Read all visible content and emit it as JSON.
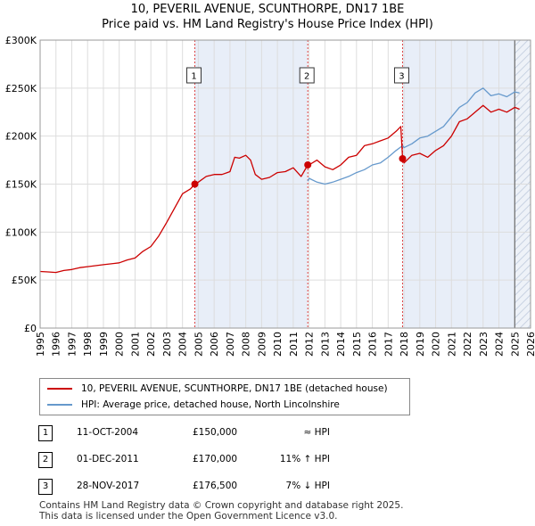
{
  "title_line1": "10, PEVERIL AVENUE, SCUNTHORPE, DN17 1BE",
  "title_line2": "Price paid vs. HM Land Registry's House Price Index (HPI)",
  "chart_data": {
    "type": "line",
    "xlim": [
      1995,
      2026
    ],
    "ylim": [
      0,
      300000
    ],
    "y_ticks": [
      0,
      50000,
      100000,
      150000,
      200000,
      250000,
      300000
    ],
    "y_tick_labels": [
      "£0",
      "£50K",
      "£100K",
      "£150K",
      "£200K",
      "£250K",
      "£300K"
    ],
    "x_ticks": [
      1995,
      1996,
      1997,
      1998,
      1999,
      2000,
      2001,
      2002,
      2003,
      2004,
      2005,
      2006,
      2007,
      2008,
      2009,
      2010,
      2011,
      2012,
      2013,
      2014,
      2015,
      2016,
      2017,
      2018,
      2019,
      2020,
      2021,
      2022,
      2023,
      2024,
      2025,
      2026
    ],
    "x_tick_labels": [
      "1995",
      "1996",
      "1997",
      "1998",
      "1999",
      "2000",
      "2001",
      "2002",
      "2003",
      "2004",
      "2005",
      "2006",
      "2007",
      "2008",
      "2009",
      "2010",
      "2011",
      "2012",
      "2013",
      "2014",
      "2015",
      "2016",
      "2017",
      "2018",
      "2019",
      "2020",
      "2021",
      "2022",
      "2023",
      "2024",
      "2025",
      "2026"
    ],
    "grid": true,
    "forecast_from": 2025.0,
    "series": [
      {
        "name": "10, PEVERIL AVENUE, SCUNTHORPE, DN17 1BE (detached house)",
        "color": "#cc0000",
        "x": [
          1995.0,
          1995.5,
          1996.0,
          1996.5,
          1997.0,
          1997.5,
          1998.0,
          1998.5,
          1999.0,
          1999.5,
          2000.0,
          2000.5,
          2001.0,
          2001.5,
          2002.0,
          2002.5,
          2003.0,
          2003.5,
          2004.0,
          2004.5,
          2004.78,
          2005.0,
          2005.5,
          2006.0,
          2006.5,
          2007.0,
          2007.3,
          2007.6,
          2008.0,
          2008.3,
          2008.6,
          2009.0,
          2009.5,
          2010.0,
          2010.5,
          2011.0,
          2011.5,
          2011.92,
          2012.0,
          2012.5,
          2013.0,
          2013.5,
          2014.0,
          2014.5,
          2015.0,
          2015.5,
          2016.0,
          2016.5,
          2017.0,
          2017.5,
          2017.8,
          2017.91,
          2018.0,
          2018.5,
          2019.0,
          2019.5,
          2020.0,
          2020.5,
          2021.0,
          2021.5,
          2022.0,
          2022.5,
          2023.0,
          2023.5,
          2024.0,
          2024.5,
          2025.0,
          2025.3
        ],
        "values": [
          59000,
          58500,
          58000,
          60000,
          61000,
          63000,
          64000,
          65000,
          66000,
          67000,
          68000,
          71000,
          73000,
          80000,
          85000,
          96000,
          110000,
          125000,
          140000,
          145000,
          150000,
          152000,
          158000,
          160000,
          160000,
          163000,
          178000,
          177000,
          180000,
          175000,
          160000,
          155000,
          157000,
          162000,
          163000,
          167000,
          158000,
          170000,
          170000,
          175000,
          168000,
          165000,
          170000,
          178000,
          180000,
          190000,
          192000,
          195000,
          198000,
          205000,
          210000,
          176500,
          172000,
          180000,
          182000,
          178000,
          185000,
          190000,
          200000,
          215000,
          218000,
          225000,
          232000,
          225000,
          228000,
          225000,
          230000,
          228000
        ]
      },
      {
        "name": "HPI: Average price, detached house, North Lincolnshire",
        "color": "#6699cc",
        "x": [
          2011.92,
          2012.0,
          2012.5,
          2013.0,
          2013.5,
          2014.0,
          2014.5,
          2015.0,
          2015.5,
          2016.0,
          2016.5,
          2017.0,
          2017.5,
          2017.91,
          2018.0,
          2018.5,
          2019.0,
          2019.5,
          2020.0,
          2020.5,
          2021.0,
          2021.5,
          2022.0,
          2022.5,
          2023.0,
          2023.5,
          2024.0,
          2024.5,
          2025.0,
          2025.3
        ],
        "values": [
          153000,
          156000,
          152000,
          150000,
          152000,
          155000,
          158000,
          162000,
          165000,
          170000,
          172000,
          178000,
          185000,
          190000,
          188000,
          192000,
          198000,
          200000,
          205000,
          210000,
          220000,
          230000,
          235000,
          245000,
          250000,
          242000,
          244000,
          241000,
          246000,
          245000
        ]
      }
    ],
    "sales": [
      {
        "label": "1",
        "x": 2004.78,
        "value": 150000
      },
      {
        "label": "2",
        "x": 2011.92,
        "value": 170000
      },
      {
        "label": "3",
        "x": 2017.91,
        "value": 176500
      }
    ]
  },
  "legend": {
    "items": [
      {
        "label": "10, PEVERIL AVENUE, SCUNTHORPE, DN17 1BE (detached house)",
        "color": "#cc0000"
      },
      {
        "label": "HPI: Average price, detached house, North Lincolnshire",
        "color": "#6699cc"
      }
    ]
  },
  "transactions": [
    {
      "num": "1",
      "date": "11-OCT-2004",
      "price": "£150,000",
      "relation": "≈ HPI"
    },
    {
      "num": "2",
      "date": "01-DEC-2011",
      "price": "£170,000",
      "relation": "11% ↑ HPI"
    },
    {
      "num": "3",
      "date": "28-NOV-2017",
      "price": "£176,500",
      "relation": "7% ↓ HPI"
    }
  ],
  "footer_line1": "Contains HM Land Registry data © Crown copyright and database right 2025.",
  "footer_line2": "This data is licensed under the Open Government Licence v3.0."
}
